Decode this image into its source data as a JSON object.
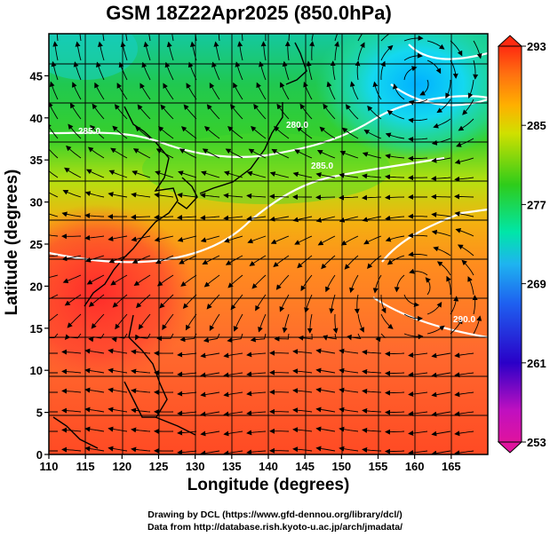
{
  "title": "GSM 18Z22Apr2025 (850.0hPa)",
  "axes": {
    "xlabel": "Longitude (degrees)",
    "ylabel": "Latitude  (degrees)",
    "x_ticks": [
      "110",
      "115",
      "120",
      "125",
      "130",
      "135",
      "140",
      "145",
      "150",
      "155",
      "160",
      "165"
    ],
    "y_ticks": [
      "0",
      "5",
      "10",
      "15",
      "20",
      "25",
      "30",
      "35",
      "40",
      "45"
    ],
    "x_range": [
      110,
      170
    ],
    "y_range": [
      0,
      50
    ]
  },
  "colorbar": {
    "labels": [
      "293",
      "285",
      "277",
      "269",
      "261",
      "253"
    ],
    "range": [
      253,
      293
    ],
    "colors": [
      "#e0139e",
      "#2a00c8",
      "#1e8cf0",
      "#00e6a8",
      "#2ecc1a",
      "#f0ec00",
      "#ff8c00",
      "#ff2a10"
    ]
  },
  "contour_labels": [
    "285.0",
    "280.0",
    "285.0",
    "290.0"
  ],
  "credits": {
    "line1": "Drawing by DCL (https://www.gfd-dennou.org/library/dcl/)",
    "line2": "Data from http://database.rish.kyoto-u.ac.jp/arch/jmadata/"
  }
}
